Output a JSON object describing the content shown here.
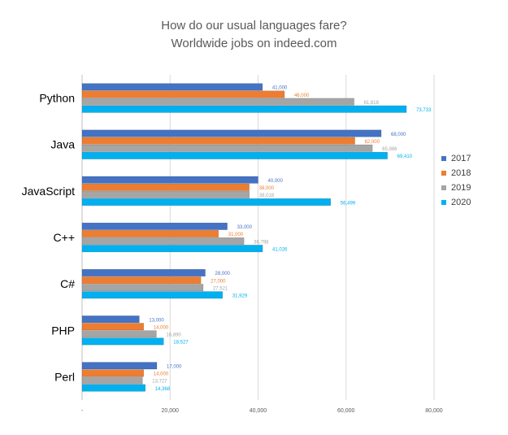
{
  "chart_data": {
    "type": "bar",
    "orientation": "horizontal",
    "title": "How do our usual languages fare?",
    "subtitle": "Worldwide jobs on indeed.com",
    "categories": [
      "Python",
      "Java",
      "JavaScript",
      "C++",
      "C#",
      "PHP",
      "Perl"
    ],
    "series": [
      {
        "name": "2017",
        "color": "#4472C4",
        "values": [
          41000,
          68000,
          40000,
          33000,
          28000,
          13000,
          17000
        ],
        "labels": [
          "41,000",
          "68,000",
          "40,000",
          "33,000",
          "28,000",
          "13,000",
          "17,000"
        ]
      },
      {
        "name": "2018",
        "color": "#ED7D31",
        "values": [
          46000,
          62000,
          38000,
          31000,
          27000,
          14000,
          14000
        ],
        "labels": [
          "46,000",
          "62,000",
          "38,000",
          "31,000",
          "27,000",
          "14,000",
          "14,000"
        ]
      },
      {
        "name": "2019",
        "color": "#A5A5A5",
        "values": [
          61818,
          65986,
          38018,
          36798,
          27521,
          16890,
          13727
        ],
        "labels": [
          "61,818",
          "65,986",
          "38,018",
          "36,798",
          "27,521",
          "16,890",
          "13,727"
        ]
      },
      {
        "name": "2020",
        "color": "#00B0F0",
        "values": [
          73733,
          69410,
          56499,
          41026,
          31929,
          18527,
          14368
        ],
        "labels": [
          "73,733",
          "69,410",
          "56,499",
          "41,026",
          "31,929",
          "18,527",
          "14,368"
        ]
      }
    ],
    "xlim": [
      0,
      80000
    ],
    "x_ticks": [
      0,
      20000,
      40000,
      60000,
      80000
    ],
    "x_tick_labels": [
      "-",
      "20,000",
      "40,000",
      "60,000",
      "80,000"
    ],
    "grid": true,
    "legend_position": "right"
  }
}
